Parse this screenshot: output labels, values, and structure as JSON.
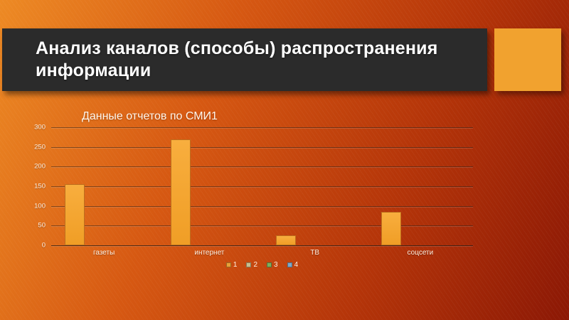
{
  "slide": {
    "title": "Анализ каналов (способы) распространения информации",
    "title_bar_color": "#2B2B2B",
    "accent_square_color": "#F1A22F",
    "background_gradient": [
      "#ED8A24",
      "#8C1805"
    ],
    "text_color": "#FFFFFF"
  },
  "chart_data": {
    "type": "bar",
    "title": "Данные отчетов по СМИ1",
    "categories": [
      "газеты",
      "интернет",
      "ТВ",
      "соцсети"
    ],
    "series": [
      {
        "name": "1",
        "color": "#F2A434",
        "values": [
          155,
          270,
          25,
          85
        ]
      }
    ],
    "legend": [
      {
        "label": "1",
        "color": "#E9A038"
      },
      {
        "label": "2",
        "color": "#C9BE8F"
      },
      {
        "label": "3",
        "color": "#7FAD5C"
      },
      {
        "label": "4",
        "color": "#7FA9C9"
      }
    ],
    "xlabel": "",
    "ylabel": "",
    "ylim": [
      0,
      300
    ],
    "yticks": [
      0,
      50,
      100,
      150,
      200,
      250,
      300
    ],
    "grid": true,
    "legend_position": "bottom",
    "plot_background": "transparent",
    "bar_border_color": "#BE6F1D",
    "axis_text_color": "#FFEFE0"
  }
}
